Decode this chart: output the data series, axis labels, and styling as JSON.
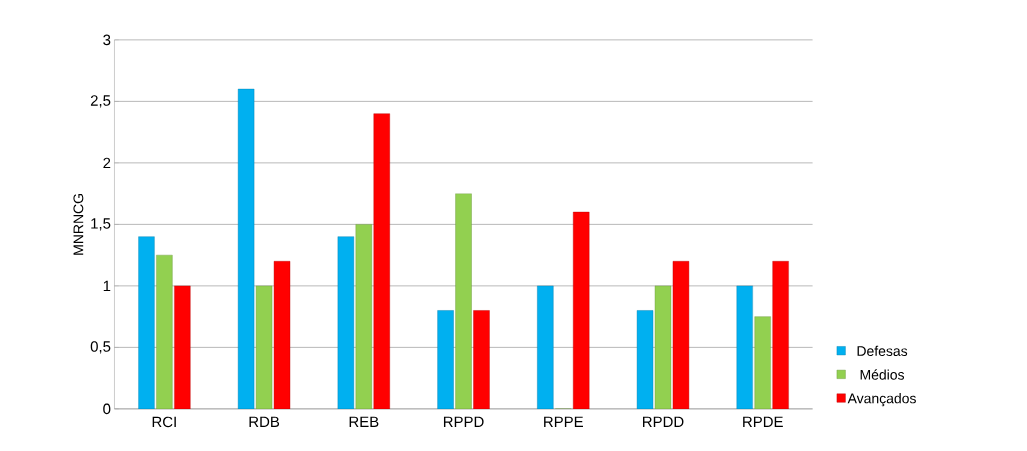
{
  "chart_data": {
    "type": "bar",
    "ylabel": "MNRNCG",
    "categories": [
      "RCI",
      "RDB",
      "REB",
      "RPPD",
      "RPPE",
      "RPDD",
      "RPDE"
    ],
    "series": [
      {
        "name": "Defesas",
        "color": "#00b0f0",
        "values": [
          1.4,
          2.6,
          1.4,
          0.8,
          1.0,
          0.8,
          1.0
        ]
      },
      {
        "name": "Médios",
        "color": "#92d050",
        "values": [
          1.25,
          1.0,
          1.5,
          1.75,
          0,
          1.0,
          0.75
        ]
      },
      {
        "name": "Avançados",
        "color": "#ff0000",
        "values": [
          1.0,
          1.2,
          2.4,
          0.8,
          1.6,
          1.2,
          1.2
        ]
      }
    ],
    "ylim": [
      0,
      3
    ],
    "yticks": [
      0,
      {
        "value": 0.5,
        "label": "0,5"
      },
      1,
      {
        "value": 1.5,
        "label": "1,5"
      },
      2,
      {
        "value": 2.5,
        "label": "2,5"
      },
      3
    ],
    "grid": "y",
    "legend": "right"
  }
}
